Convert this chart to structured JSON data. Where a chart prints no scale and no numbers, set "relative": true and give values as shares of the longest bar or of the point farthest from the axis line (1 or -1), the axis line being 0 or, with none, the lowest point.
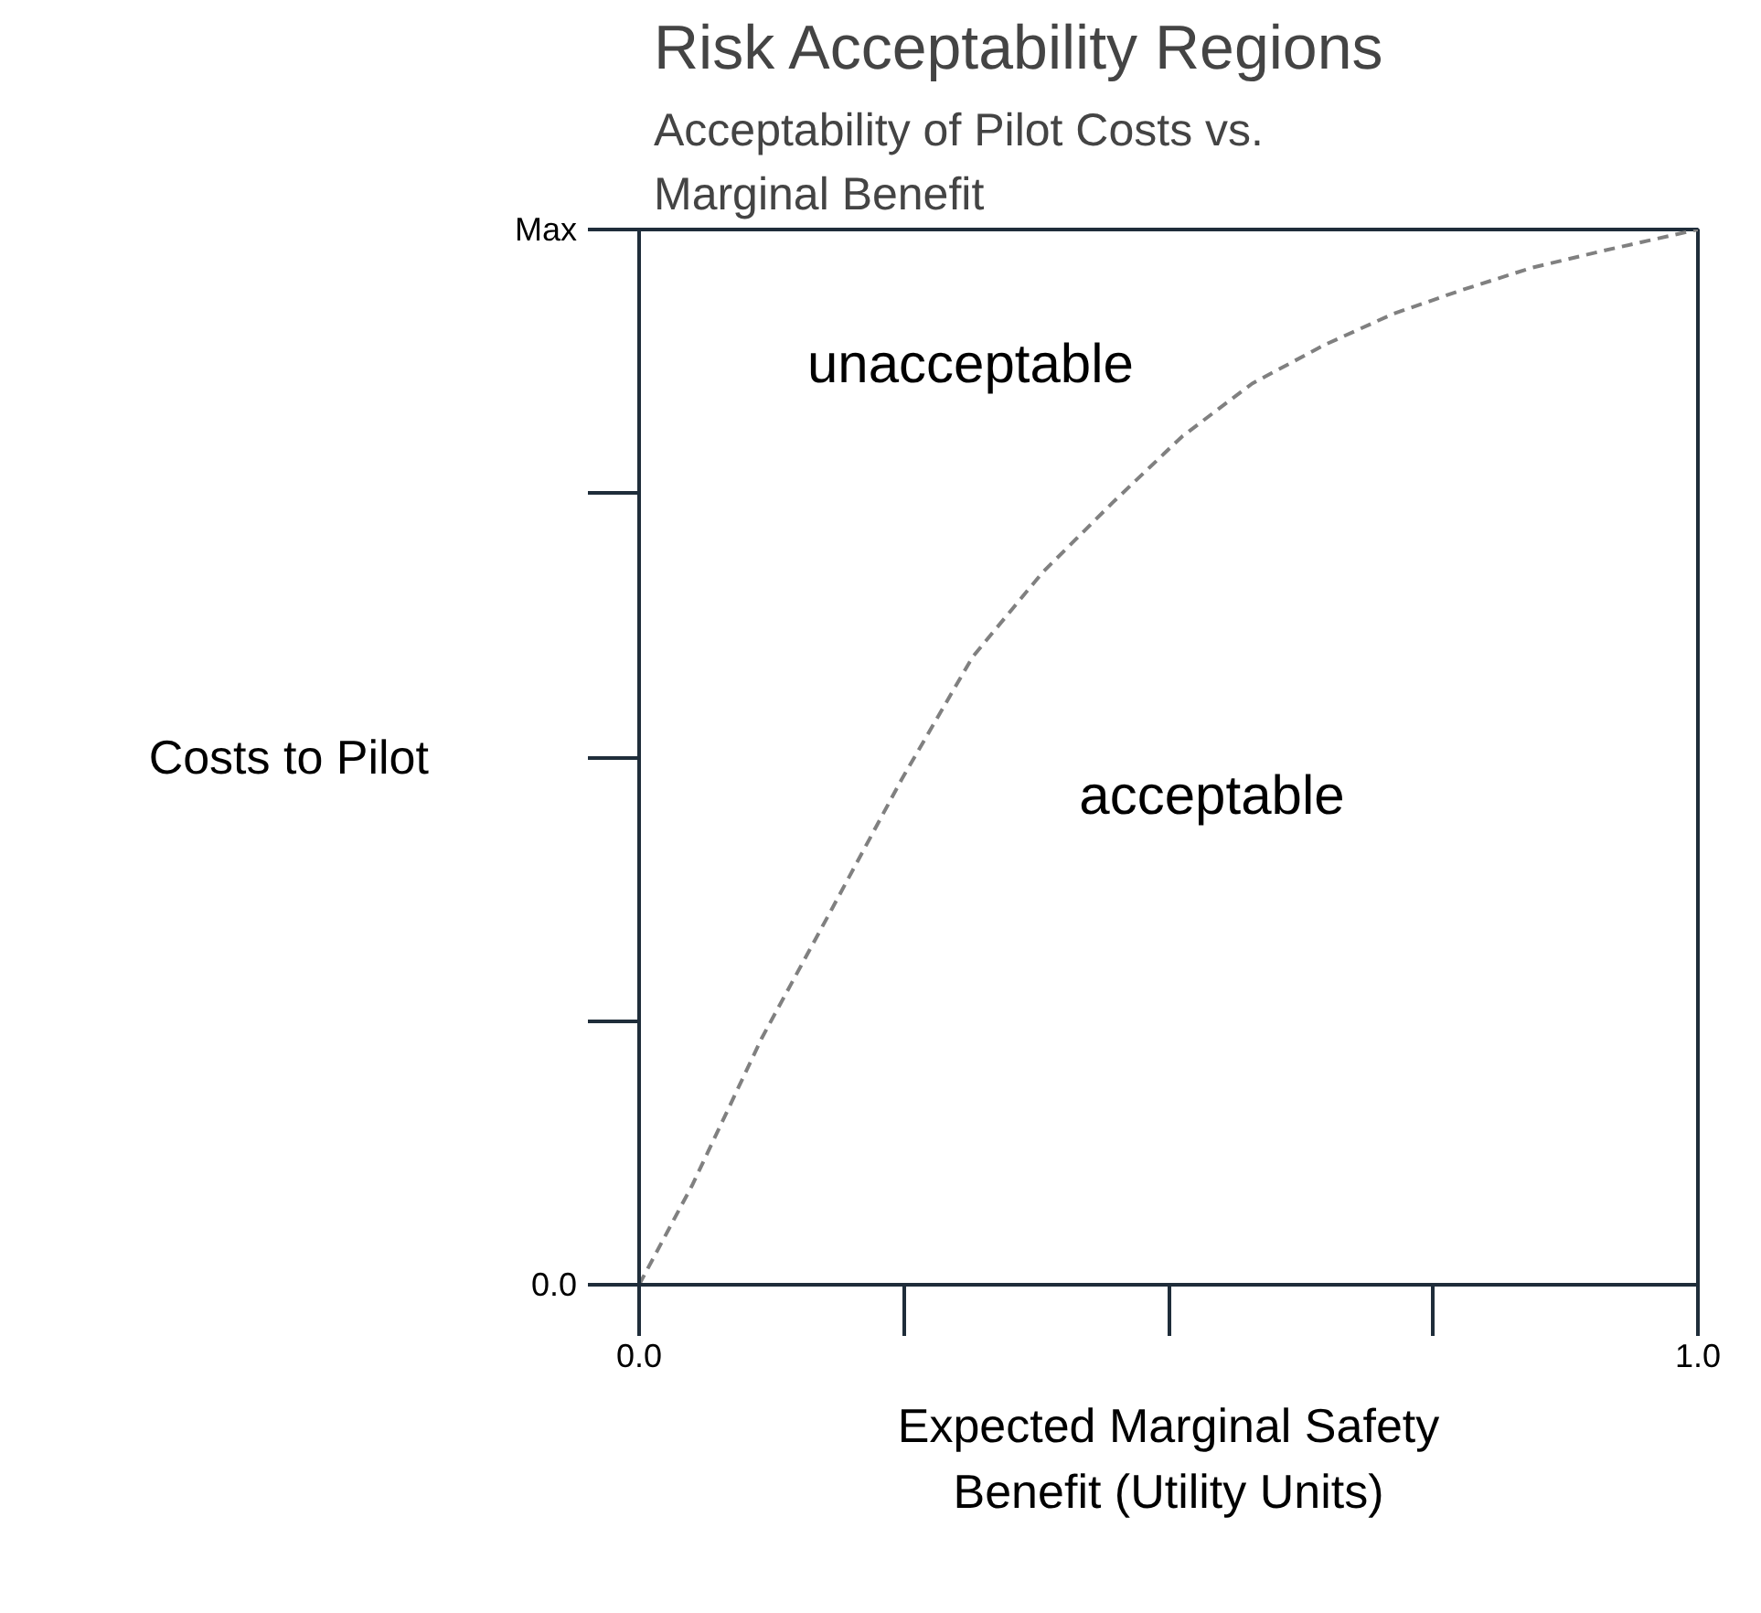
{
  "chart_data": {
    "type": "line",
    "relative": true,
    "title": "Risk Acceptability Regions",
    "subtitle": "Acceptability of Pilot Costs vs. Marginal Benefit",
    "xlabel": "Expected Marginal Safety Benefit (Utility Units)",
    "ylabel": "Costs to Pilot",
    "x": [
      0,
      0.05,
      0.116,
      0.182,
      0.248,
      0.315,
      0.381,
      0.447,
      0.513,
      0.579,
      0.646,
      0.712,
      0.778,
      0.844,
      0.911,
      1
    ],
    "series": [
      {
        "color": "#808080",
        "values": [
          0,
          0.094,
          0.234,
          0.356,
          0.479,
          0.595,
          0.675,
          0.741,
          0.804,
          0.854,
          0.89,
          0.92,
          0.943,
          0.964,
          0.98,
          1
        ]
      }
    ],
    "line_style": "dashed",
    "xlim": [
      0,
      1
    ],
    "xticks": [
      {
        "value": 0,
        "label": "0.0"
      },
      {
        "value": 1,
        "label": "1.0"
      }
    ],
    "annotations": [
      "unacceptable",
      "acceptable",
      "Max",
      "0.0"
    ]
  }
}
